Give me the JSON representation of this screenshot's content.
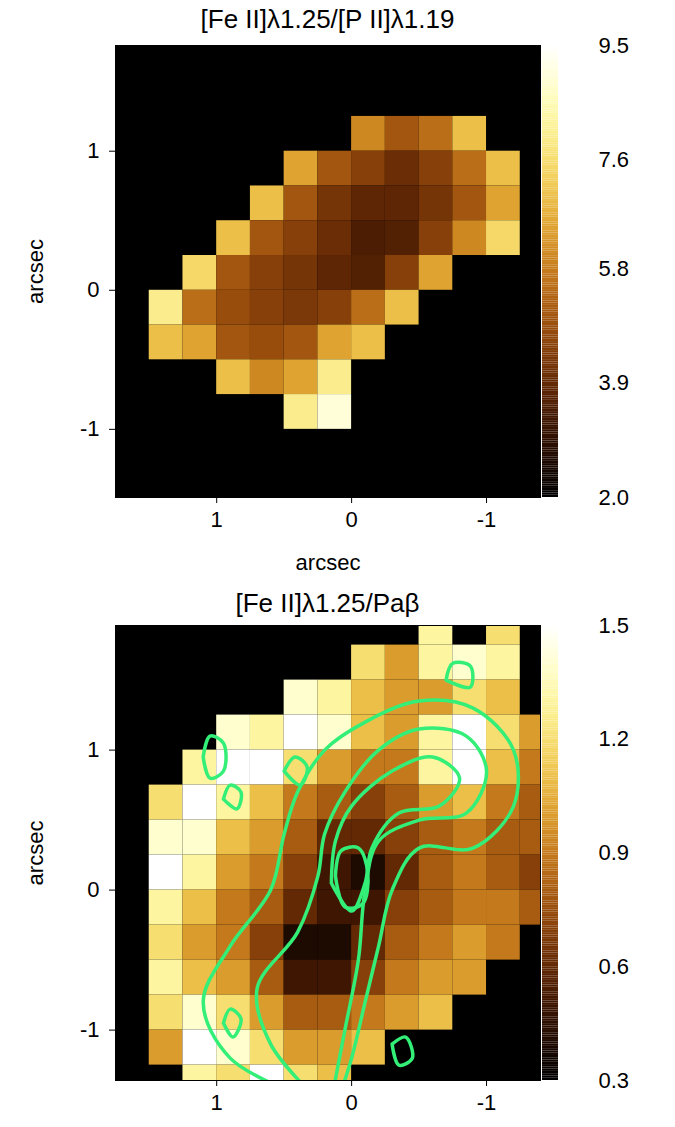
{
  "chart_data": [
    {
      "type": "heatmap",
      "title": "[Fe II]λ1.25/[P II]λ1.19",
      "xlabel": "arcsec",
      "ylabel": "arcsec",
      "xlim": [
        1.75,
        -1.4
      ],
      "ylim": [
        -1.49,
        1.76
      ],
      "xticks": [
        1,
        0,
        -1
      ],
      "yticks": [
        1,
        0,
        -1
      ],
      "x": [
        1.625,
        1.375,
        1.125,
        0.875,
        0.625,
        0.375,
        0.125,
        -0.125,
        -0.375,
        -0.625,
        -0.875,
        -1.125,
        -1.375
      ],
      "y": [
        1.625,
        1.375,
        1.125,
        0.875,
        0.625,
        0.375,
        0.125,
        -0.125,
        -0.375,
        -0.625,
        -0.875,
        -1.125,
        -1.375
      ],
      "values": [
        [
          null,
          null,
          null,
          null,
          null,
          null,
          null,
          null,
          null,
          null,
          null,
          null,
          null
        ],
        [
          null,
          null,
          null,
          null,
          null,
          null,
          null,
          null,
          null,
          null,
          null,
          null,
          null
        ],
        [
          null,
          null,
          null,
          null,
          null,
          null,
          null,
          6,
          5,
          5.5,
          7,
          null,
          null
        ],
        [
          null,
          null,
          null,
          null,
          null,
          6.5,
          5,
          4.5,
          4,
          4.5,
          5.5,
          7,
          null
        ],
        [
          null,
          null,
          null,
          null,
          7,
          5,
          4.2,
          3.8,
          3.8,
          4.2,
          5,
          6.5,
          null
        ],
        [
          null,
          null,
          null,
          7,
          5,
          4.5,
          4,
          3.5,
          3.6,
          4.5,
          6,
          7.5,
          null
        ],
        [
          null,
          null,
          7.5,
          5,
          4.5,
          4.2,
          3.8,
          3.6,
          4.5,
          6.5,
          null,
          null,
          null
        ],
        [
          null,
          8,
          5.5,
          4.8,
          4.5,
          4.3,
          4.5,
          5.5,
          7,
          null,
          null,
          null,
          null
        ],
        [
          null,
          7,
          6.5,
          5,
          4.8,
          5,
          6.5,
          7,
          null,
          null,
          null,
          null,
          null
        ],
        [
          null,
          null,
          null,
          7,
          6,
          6.5,
          8,
          null,
          null,
          null,
          null,
          null,
          null
        ],
        [
          null,
          null,
          null,
          null,
          null,
          8,
          9,
          null,
          null,
          null,
          null,
          null,
          null
        ],
        [
          null,
          null,
          null,
          null,
          null,
          null,
          null,
          null,
          null,
          null,
          null,
          null,
          null
        ],
        [
          null,
          null,
          null,
          null,
          null,
          null,
          null,
          null,
          null,
          null,
          null,
          null,
          null
        ]
      ],
      "colorbar": {
        "range": [
          2.0,
          9.5
        ],
        "ticks": [
          9.5,
          7.6,
          5.8,
          3.9,
          {
            "value": 2.0,
            "label": "2.0"
          }
        ]
      }
    },
    {
      "type": "heatmap",
      "title": "[Fe II]λ1.25/Paβ",
      "ylabel": "arcsec",
      "xlim": [
        1.75,
        -1.4
      ],
      "ylim": [
        -1.36,
        1.89
      ],
      "xticks": [
        1,
        0,
        -1
      ],
      "yticks": [
        1,
        0,
        -1
      ],
      "x": [
        1.625,
        1.375,
        1.125,
        0.875,
        0.625,
        0.375,
        0.125,
        -0.125,
        -0.375,
        -0.625,
        -0.875,
        -1.125,
        -1.375
      ],
      "y": [
        1.875,
        1.625,
        1.375,
        1.125,
        0.875,
        0.625,
        0.375,
        0.125,
        -0.125,
        -0.375,
        -0.625,
        -0.875,
        -1.125,
        -1.375
      ],
      "values": [
        [
          null,
          null,
          null,
          null,
          null,
          null,
          null,
          null,
          null,
          1.3,
          null,
          1.2,
          null
        ],
        [
          null,
          null,
          null,
          null,
          null,
          null,
          null,
          1.2,
          1.0,
          1.3,
          1.4,
          1.3,
          null
        ],
        [
          null,
          null,
          null,
          null,
          null,
          1.4,
          1.3,
          1.1,
          1.0,
          1.0,
          1.2,
          1.1,
          null
        ],
        [
          null,
          null,
          null,
          1.4,
          1.3,
          1.5,
          1.4,
          1.1,
          1.0,
          1.3,
          1.5,
          1.2,
          1.0
        ],
        [
          null,
          null,
          1.3,
          1.5,
          1.5,
          1.2,
          1.0,
          0.9,
          0.9,
          1.3,
          1.5,
          1.1,
          0.9
        ],
        [
          null,
          1.2,
          1.5,
          1.3,
          1.1,
          0.9,
          0.8,
          0.7,
          0.8,
          1.0,
          1.1,
          0.9,
          0.8
        ],
        [
          null,
          1.4,
          1.4,
          1.1,
          1.0,
          0.8,
          0.6,
          0.6,
          0.7,
          0.8,
          0.9,
          0.8,
          0.8
        ],
        [
          null,
          1.5,
          1.3,
          1.0,
          0.9,
          0.7,
          0.5,
          0.4,
          0.6,
          0.8,
          0.9,
          0.8,
          0.7
        ],
        [
          null,
          1.3,
          1.1,
          0.9,
          0.8,
          0.6,
          0.5,
          0.5,
          0.7,
          0.8,
          0.9,
          0.9,
          0.8
        ],
        [
          null,
          1.2,
          1.0,
          0.9,
          0.7,
          0.4,
          0.4,
          0.6,
          0.8,
          0.9,
          1.0,
          0.9,
          null
        ],
        [
          null,
          1.3,
          1.1,
          1.0,
          0.8,
          0.5,
          0.5,
          0.7,
          0.9,
          1.0,
          1.0,
          null,
          null
        ],
        [
          null,
          1.2,
          1.4,
          1.2,
          1.0,
          0.8,
          0.8,
          0.9,
          1.0,
          1.1,
          null,
          null,
          null
        ],
        [
          null,
          1.0,
          1.5,
          1.4,
          1.2,
          1.0,
          1.0,
          1.1,
          null,
          null,
          null,
          null,
          null
        ],
        [
          null,
          null,
          1.3,
          1.2,
          1.5,
          1.2,
          1.1,
          null,
          null,
          null,
          null,
          null,
          null
        ]
      ],
      "colorbar": {
        "range": [
          0.3,
          1.5
        ],
        "ticks": [
          1.5,
          1.2,
          0.9,
          0.6,
          0.3
        ]
      },
      "contours": {
        "color": "#33ee77",
        "lines": [
          [
            [
              0.3,
              -1.5
            ],
            [
              0.9,
              -1.2
            ],
            [
              1.1,
              -0.8
            ],
            [
              0.9,
              -0.4
            ],
            [
              0.6,
              0.0
            ],
            [
              0.5,
              0.4
            ],
            [
              0.4,
              0.7
            ],
            [
              0.2,
              1.0
            ],
            [
              -0.1,
              1.2
            ],
            [
              -0.5,
              1.35
            ],
            [
              -0.9,
              1.3
            ],
            [
              -1.2,
              1.0
            ],
            [
              -1.2,
              0.6
            ],
            [
              -0.9,
              0.3
            ],
            [
              -0.5,
              0.3
            ],
            [
              -0.3,
              0.0
            ],
            [
              -0.2,
              -0.4
            ],
            [
              -0.1,
              -0.8
            ],
            [
              0.0,
              -1.2
            ],
            [
              0.1,
              -1.5
            ]
          ],
          [
            [
              0.25,
              -1.5
            ],
            [
              0.6,
              -1.1
            ],
            [
              0.7,
              -0.7
            ],
            [
              0.4,
              -0.3
            ],
            [
              0.25,
              0.1
            ],
            [
              0.2,
              0.4
            ],
            [
              0.05,
              0.7
            ],
            [
              -0.2,
              1.0
            ],
            [
              -0.5,
              1.15
            ],
            [
              -0.85,
              1.1
            ],
            [
              -1.0,
              0.85
            ],
            [
              -0.85,
              0.55
            ],
            [
              -0.5,
              0.5
            ],
            [
              -0.2,
              0.35
            ],
            [
              -0.1,
              0.0
            ],
            [
              -0.05,
              -0.5
            ],
            [
              0.05,
              -1.0
            ],
            [
              0.15,
              -1.5
            ]
          ],
          [
            [
              0.15,
              0.05
            ],
            [
              0.12,
              0.35
            ],
            [
              0.0,
              0.6
            ],
            [
              -0.3,
              0.85
            ],
            [
              -0.6,
              0.95
            ],
            [
              -0.8,
              0.8
            ],
            [
              -0.65,
              0.6
            ],
            [
              -0.35,
              0.55
            ],
            [
              -0.15,
              0.3
            ],
            [
              -0.1,
              0.05
            ],
            [
              0.0,
              -0.15
            ],
            [
              0.15,
              0.05
            ]
          ],
          [
            [
              0.12,
              0.1
            ],
            [
              0.08,
              0.28
            ],
            [
              -0.05,
              0.3
            ],
            [
              -0.12,
              0.12
            ],
            [
              -0.08,
              -0.1
            ],
            [
              0.05,
              -0.12
            ],
            [
              0.12,
              0.1
            ]
          ],
          [
            [
              1.1,
              0.95
            ],
            [
              1.05,
              1.1
            ],
            [
              0.95,
              1.05
            ],
            [
              0.95,
              0.85
            ],
            [
              1.05,
              0.8
            ],
            [
              1.1,
              0.95
            ]
          ],
          [
            [
              0.95,
              0.65
            ],
            [
              0.9,
              0.75
            ],
            [
              0.82,
              0.7
            ],
            [
              0.85,
              0.58
            ],
            [
              0.95,
              0.65
            ]
          ],
          [
            [
              0.5,
              0.85
            ],
            [
              0.42,
              0.95
            ],
            [
              0.33,
              0.88
            ],
            [
              0.38,
              0.75
            ],
            [
              0.5,
              0.85
            ]
          ],
          [
            [
              -0.7,
              1.5
            ],
            [
              -0.75,
              1.62
            ],
            [
              -0.88,
              1.6
            ],
            [
              -0.88,
              1.45
            ],
            [
              -0.7,
              1.5
            ]
          ],
          [
            [
              0.95,
              -0.95
            ],
            [
              0.9,
              -0.85
            ],
            [
              0.82,
              -0.92
            ],
            [
              0.88,
              -1.05
            ],
            [
              0.95,
              -0.95
            ]
          ],
          [
            [
              -0.3,
              -1.1
            ],
            [
              -0.4,
              -1.05
            ],
            [
              -0.45,
              -1.2
            ],
            [
              -0.35,
              -1.25
            ],
            [
              -0.3,
              -1.1
            ]
          ]
        ]
      }
    }
  ]
}
